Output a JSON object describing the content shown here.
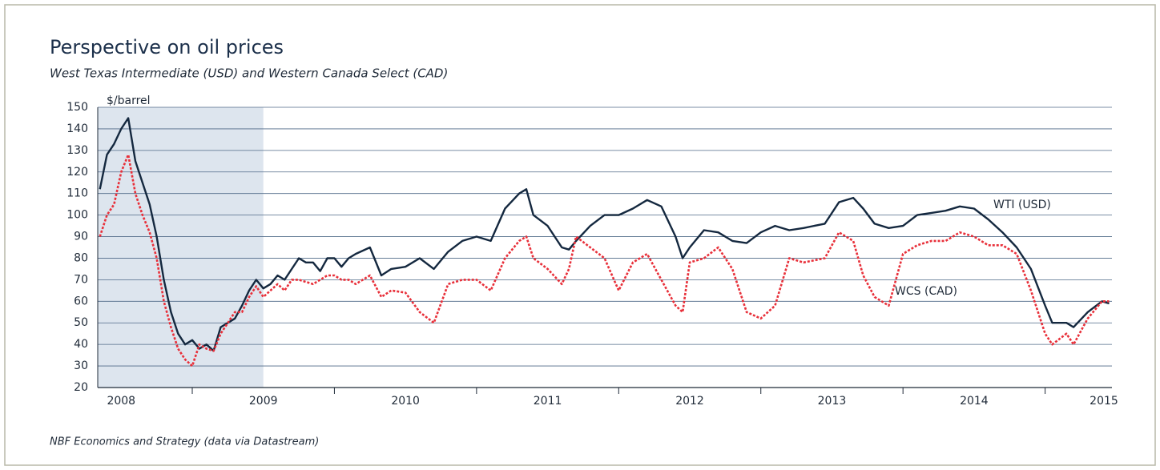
{
  "chart_data": {
    "type": "line",
    "title": "Perspective on oil prices",
    "subtitle": "West Texas Intermediate (USD) and Western Canada Select (CAD)",
    "y_unit_label": "$/barrel",
    "source": "NBF Economics and Strategy (data via Datastream)",
    "x": [
      2008.35,
      2008.4,
      2008.45,
      2008.5,
      2008.55,
      2008.6,
      2008.65,
      2008.7,
      2008.75,
      2008.8,
      2008.85,
      2008.9,
      2008.95,
      2009.0,
      2009.05,
      2009.1,
      2009.15,
      2009.2,
      2009.25,
      2009.3,
      2009.35,
      2009.4,
      2009.45,
      2009.5,
      2009.55,
      2009.6,
      2009.65,
      2009.7,
      2009.75,
      2009.8,
      2009.85,
      2009.9,
      2009.95,
      2010.0,
      2010.05,
      2010.1,
      2010.15,
      2010.25,
      2010.33,
      2010.4,
      2010.5,
      2010.6,
      2010.7,
      2010.8,
      2010.9,
      2011.0,
      2011.1,
      2011.2,
      2011.3,
      2011.35,
      2011.4,
      2011.5,
      2011.6,
      2011.65,
      2011.7,
      2011.8,
      2011.9,
      2012.0,
      2012.1,
      2012.2,
      2012.3,
      2012.4,
      2012.45,
      2012.5,
      2012.6,
      2012.7,
      2012.8,
      2012.9,
      2013.0,
      2013.1,
      2013.2,
      2013.3,
      2013.45,
      2013.55,
      2013.65,
      2013.72,
      2013.8,
      2013.9,
      2014.0,
      2014.1,
      2014.2,
      2014.3,
      2014.4,
      2014.5,
      2014.6,
      2014.7,
      2014.8,
      2014.9,
      2015.0,
      2015.05,
      2015.15,
      2015.2,
      2015.3,
      2015.4,
      2015.45
    ],
    "series": [
      {
        "name": "WTI (USD)",
        "color": "#14283f",
        "dash": false,
        "values": [
          112,
          128,
          133,
          140,
          145,
          125,
          115,
          105,
          90,
          70,
          55,
          45,
          40,
          42,
          38,
          40,
          37,
          48,
          50,
          52,
          58,
          65,
          70,
          66,
          68,
          72,
          70,
          75,
          80,
          78,
          78,
          74,
          80,
          80,
          76,
          80,
          82,
          85,
          72,
          75,
          76,
          80,
          75,
          83,
          88,
          90,
          88,
          103,
          110,
          112,
          100,
          95,
          85,
          84,
          88,
          95,
          100,
          100,
          103,
          107,
          104,
          90,
          80,
          85,
          93,
          92,
          88,
          87,
          92,
          95,
          93,
          94,
          96,
          106,
          108,
          103,
          96,
          94,
          95,
          100,
          101,
          102,
          104,
          103,
          98,
          92,
          85,
          75,
          58,
          50,
          50,
          48,
          55,
          60,
          59
        ]
      },
      {
        "name": "WCS (CAD)",
        "color": "#e8303a",
        "dash": true,
        "values": [
          90,
          100,
          105,
          120,
          128,
          110,
          100,
          92,
          80,
          60,
          48,
          38,
          33,
          30,
          40,
          38,
          37,
          45,
          50,
          55,
          55,
          62,
          67,
          62,
          65,
          68,
          65,
          70,
          70,
          69,
          68,
          70,
          72,
          72,
          70,
          70,
          68,
          72,
          62,
          65,
          64,
          55,
          50,
          68,
          70,
          70,
          65,
          80,
          88,
          90,
          80,
          75,
          68,
          75,
          90,
          85,
          80,
          65,
          78,
          82,
          70,
          58,
          55,
          78,
          80,
          85,
          75,
          55,
          52,
          58,
          80,
          78,
          80,
          92,
          88,
          72,
          62,
          58,
          82,
          86,
          88,
          88,
          92,
          90,
          86,
          86,
          82,
          65,
          45,
          40,
          45,
          40,
          52,
          60,
          60
        ]
      }
    ],
    "xlim": [
      2008.335,
      2015.47
    ],
    "ylim": [
      20,
      150
    ],
    "yticks": [
      20,
      30,
      40,
      50,
      60,
      70,
      80,
      90,
      100,
      110,
      120,
      130,
      140,
      150
    ],
    "xticks": [
      {
        "value": 2008.5,
        "label": "2008"
      },
      {
        "value": 2009.5,
        "label": "2009"
      },
      {
        "value": 2010.5,
        "label": "2010"
      },
      {
        "value": 2011.5,
        "label": "2011"
      },
      {
        "value": 2012.5,
        "label": "2012"
      },
      {
        "value": 2013.5,
        "label": "2013"
      },
      {
        "value": 2014.5,
        "label": "2014"
      },
      {
        "value": 2015.5,
        "label": "2015"
      }
    ],
    "x_tick_marks": [
      2009,
      2010,
      2011,
      2012,
      2013,
      2014,
      2015
    ],
    "shade_x": [
      2008.335,
      2009.5
    ],
    "shade_color": "#dde5ee",
    "grid": true
  }
}
